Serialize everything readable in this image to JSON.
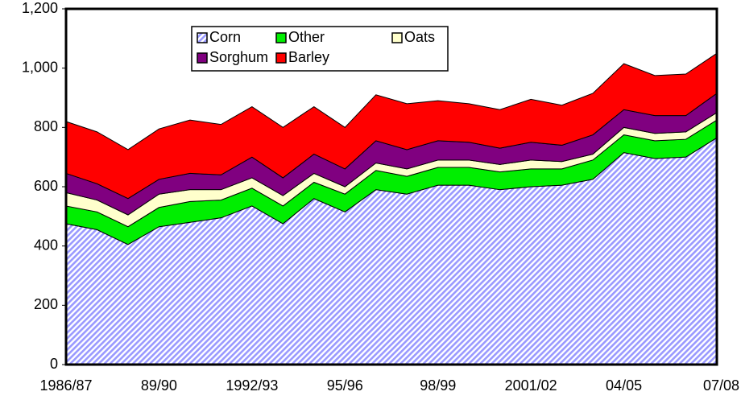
{
  "chart_data": {
    "type": "stacked_area",
    "categories": [
      "1986/87",
      null,
      null,
      "89/90",
      null,
      null,
      "1992/93",
      null,
      null,
      "95/96",
      null,
      null,
      "98/99",
      null,
      null,
      "2001/02",
      null,
      null,
      "04/05",
      null,
      null,
      "07/08"
    ],
    "series": [
      {
        "name": "Corn",
        "color": "#9999ff",
        "values": [
          475,
          455,
          405,
          465,
          480,
          495,
          535,
          475,
          560,
          515,
          590,
          575,
          605,
          605,
          590,
          600,
          605,
          625,
          715,
          695,
          700,
          765
        ]
      },
      {
        "name": "Other",
        "color": "#00ee00",
        "values": [
          60,
          60,
          60,
          65,
          70,
          60,
          60,
          60,
          55,
          60,
          65,
          60,
          60,
          60,
          60,
          60,
          55,
          65,
          60,
          60,
          60,
          60
        ]
      },
      {
        "name": "Oats",
        "color": "#ffffcc",
        "values": [
          45,
          40,
          40,
          45,
          40,
          35,
          35,
          35,
          30,
          25,
          25,
          25,
          25,
          25,
          25,
          30,
          25,
          20,
          25,
          25,
          25,
          25
        ]
      },
      {
        "name": "Sorghum",
        "color": "#800080",
        "values": [
          65,
          55,
          55,
          50,
          55,
          50,
          70,
          60,
          65,
          60,
          75,
          65,
          65,
          60,
          55,
          60,
          55,
          65,
          60,
          60,
          55,
          65
        ]
      },
      {
        "name": "Barley",
        "color": "#ff0000",
        "values": [
          175,
          175,
          165,
          170,
          180,
          170,
          170,
          170,
          160,
          140,
          155,
          155,
          135,
          130,
          130,
          145,
          135,
          140,
          155,
          135,
          140,
          135
        ]
      }
    ],
    "ylim": [
      0,
      1200
    ],
    "yticks": [
      0,
      200,
      400,
      600,
      800,
      {
        "value": 1000,
        "label": "1,000"
      },
      {
        "value": 1200,
        "label": "1,200"
      }
    ]
  }
}
